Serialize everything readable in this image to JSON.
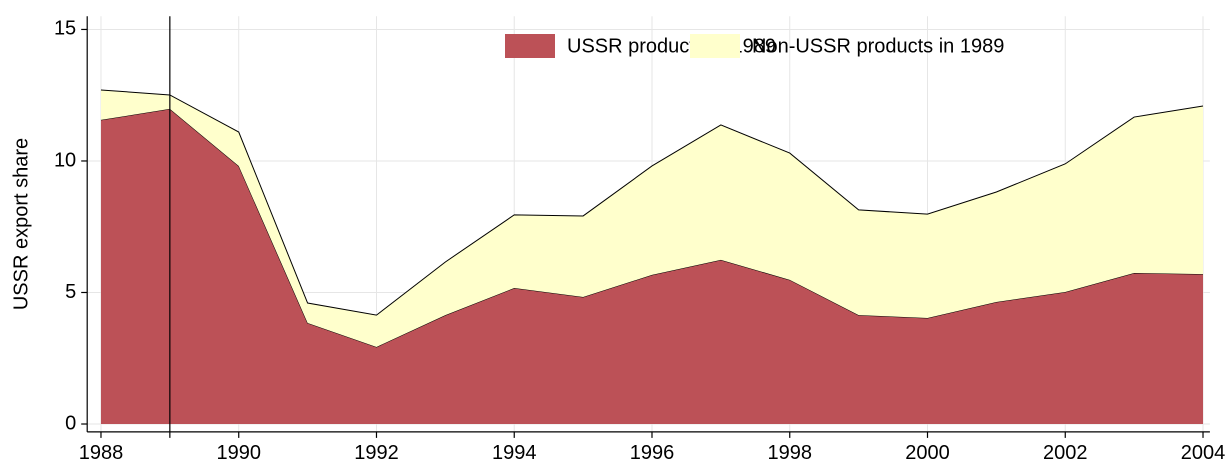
{
  "chart_data": {
    "type": "stacked-area",
    "y_label": "USSR export share",
    "x": [
      1988,
      1989,
      1990,
      1991,
      1992,
      1993,
      1994,
      1995,
      1996,
      1997,
      1998,
      1999,
      2000,
      2001,
      2002,
      2003,
      2004
    ],
    "series": [
      {
        "name": "USSR products in 1989",
        "color": "#bc5157",
        "values": [
          11.56,
          11.98,
          9.81,
          3.84,
          2.93,
          4.14,
          5.17,
          4.83,
          5.67,
          6.24,
          5.48,
          4.14,
          4.03,
          4.64,
          5.02,
          5.74,
          5.7
        ]
      },
      {
        "name": "Non-USSR products in 1989",
        "color": "#ffffcc",
        "values": [
          1.14,
          0.53,
          1.29,
          0.76,
          1.21,
          2.02,
          2.78,
          3.08,
          4.14,
          5.13,
          4.82,
          4.0,
          3.95,
          4.18,
          4.87,
          5.93,
          6.39
        ]
      }
    ],
    "xlim": [
      1987.8,
      2004.1
    ],
    "xticks": [
      1988,
      1990,
      1992,
      1994,
      1996,
      1998,
      2000,
      2002,
      2004
    ],
    "ylim": [
      -0.3,
      15.5
    ],
    "yticks": [
      0,
      5,
      10,
      15
    ],
    "vline": 1989,
    "grid": true,
    "legend": "top-right"
  }
}
